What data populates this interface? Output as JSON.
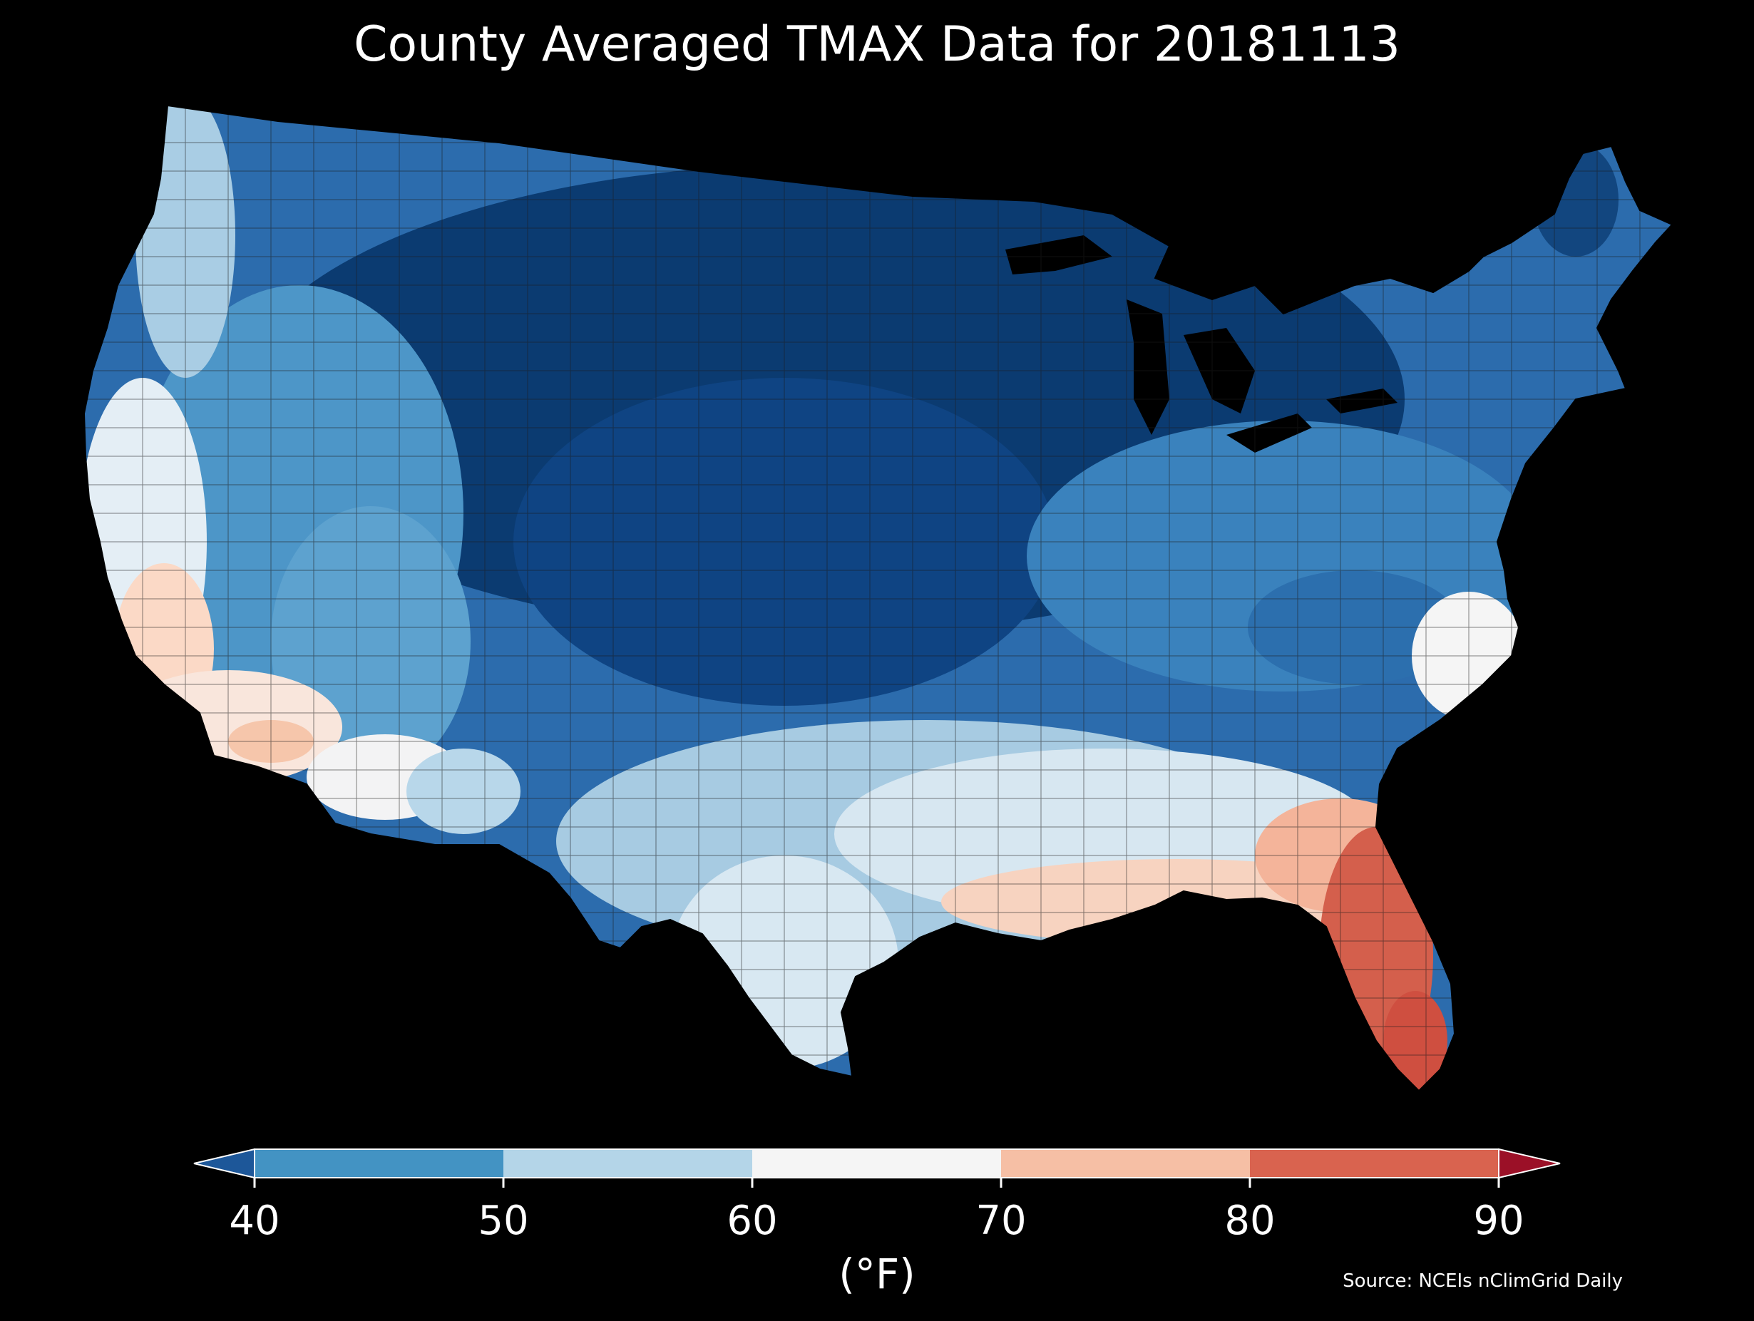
{
  "title": "County Averaged TMAX Data for 20181113",
  "colorbar": {
    "unit_label": "(°F)",
    "ticks": [
      "40",
      "50",
      "60",
      "70",
      "80",
      "90"
    ],
    "bins": [
      {
        "range": "<40",
        "color": "#1d5799"
      },
      {
        "range": "40-50",
        "color": "#4393c3"
      },
      {
        "range": "50-60",
        "color": "#b4d5e8"
      },
      {
        "range": "60-70",
        "color": "#f5f5f5"
      },
      {
        "range": "70-80",
        "color": "#f6bfa5"
      },
      {
        "range": "80-90",
        "color": "#d9634f"
      },
      {
        "range": ">90",
        "color": "#9b1027"
      }
    ],
    "extend": "both"
  },
  "source": "Source: NCEIs nClimGrid Daily",
  "colors": {
    "background": "#000000",
    "text": "#ffffff",
    "county_border": "#222222"
  }
}
